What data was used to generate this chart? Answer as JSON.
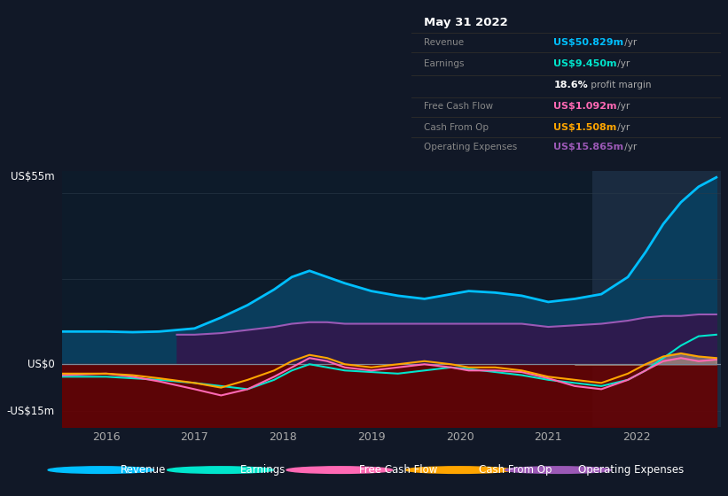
{
  "bg_color": "#111827",
  "plot_bg_color": "#0d1b2a",
  "grid_color": "#2a3a4a",
  "ylim": [
    -20,
    62
  ],
  "xlim": [
    2015.5,
    2022.95
  ],
  "ylabel_top": "US$55m",
  "ylabel_zero": "US$0",
  "ylabel_bottom": "-US$15m",
  "xticks": [
    2016,
    2017,
    2018,
    2019,
    2020,
    2021,
    2022
  ],
  "revenue_color": "#00bfff",
  "earnings_color": "#00e5cc",
  "fcf_color": "#ff69b4",
  "cashfromop_color": "#ffa500",
  "opex_color": "#9b59b6",
  "revenue_fill_color": "#0a3d5c",
  "earnings_fill_color": "#6b0000",
  "opex_fill_color": "#2d1b4e",
  "highlight_bg": "#1a2b40",
  "highlight_start": 2021.5,
  "highlight_end": 2022.95,
  "revenue": {
    "x": [
      2015.5,
      2016.0,
      2016.3,
      2016.6,
      2017.0,
      2017.3,
      2017.6,
      2017.9,
      2018.1,
      2018.3,
      2018.5,
      2018.7,
      2019.0,
      2019.3,
      2019.6,
      2019.9,
      2020.1,
      2020.4,
      2020.7,
      2021.0,
      2021.3,
      2021.6,
      2021.9,
      2022.1,
      2022.3,
      2022.5,
      2022.7,
      2022.9
    ],
    "y": [
      10.5,
      10.5,
      10.3,
      10.5,
      11.5,
      15,
      19,
      24,
      28,
      30,
      28,
      26,
      23.5,
      22,
      21,
      22.5,
      23.5,
      23,
      22,
      20,
      21,
      22.5,
      28,
      36,
      45,
      52,
      57,
      60
    ]
  },
  "opex": {
    "x": [
      2016.8,
      2017.0,
      2017.3,
      2017.6,
      2017.9,
      2018.1,
      2018.3,
      2018.5,
      2018.7,
      2019.0,
      2019.3,
      2019.6,
      2019.9,
      2020.1,
      2020.4,
      2020.7,
      2021.0,
      2021.3,
      2021.6,
      2021.9,
      2022.1,
      2022.3,
      2022.5,
      2022.7,
      2022.9
    ],
    "y": [
      9.5,
      9.5,
      10,
      11,
      12,
      13,
      13.5,
      13.5,
      13,
      13,
      13,
      13,
      13,
      13,
      13,
      13,
      12,
      12.5,
      13,
      14,
      15,
      15.5,
      15.5,
      16,
      16
    ]
  },
  "earnings": {
    "x": [
      2015.5,
      2016.0,
      2016.3,
      2016.6,
      2017.0,
      2017.3,
      2017.6,
      2017.9,
      2018.1,
      2018.3,
      2018.5,
      2018.7,
      2019.0,
      2019.3,
      2019.6,
      2019.9,
      2020.1,
      2020.4,
      2020.7,
      2021.0,
      2021.3,
      2021.6,
      2021.9,
      2022.1,
      2022.3,
      2022.5,
      2022.7,
      2022.9
    ],
    "y": [
      -4,
      -4,
      -4.5,
      -5,
      -6,
      -7,
      -8,
      -5,
      -2,
      0,
      -1,
      -2,
      -2.5,
      -3,
      -2,
      -1,
      -1.5,
      -2.5,
      -3.5,
      -5,
      -6,
      -7,
      -5,
      -2,
      2,
      6,
      9,
      9.5
    ]
  },
  "fcf": {
    "x": [
      2015.5,
      2016.0,
      2016.3,
      2016.6,
      2017.0,
      2017.3,
      2017.6,
      2017.9,
      2018.1,
      2018.3,
      2018.5,
      2018.7,
      2019.0,
      2019.3,
      2019.6,
      2019.9,
      2020.1,
      2020.4,
      2020.7,
      2021.0,
      2021.3,
      2021.6,
      2021.9,
      2022.1,
      2022.3,
      2022.5,
      2022.7,
      2022.9
    ],
    "y": [
      -3.5,
      -3,
      -4,
      -5.5,
      -8,
      -10,
      -8,
      -4,
      -1,
      2,
      1,
      -1,
      -2,
      -1,
      0,
      -1,
      -2,
      -2,
      -2.5,
      -4.5,
      -7,
      -8,
      -5,
      -2,
      1,
      2,
      1,
      1.5
    ]
  },
  "cashfromop": {
    "x": [
      2015.5,
      2016.0,
      2016.3,
      2016.6,
      2017.0,
      2017.3,
      2017.6,
      2017.9,
      2018.1,
      2018.3,
      2018.5,
      2018.7,
      2019.0,
      2019.3,
      2019.6,
      2019.9,
      2020.1,
      2020.4,
      2020.7,
      2021.0,
      2021.3,
      2021.6,
      2021.9,
      2022.1,
      2022.3,
      2022.5,
      2022.7,
      2022.9
    ],
    "y": [
      -3,
      -3,
      -3.5,
      -4.5,
      -6,
      -7.5,
      -5,
      -2,
      1,
      3,
      2,
      0,
      -1,
      0,
      1,
      0,
      -1,
      -1,
      -2,
      -4,
      -5,
      -6,
      -3,
      0,
      2.5,
      3.5,
      2.5,
      2
    ]
  },
  "legend": [
    {
      "label": "Revenue",
      "color": "#00bfff"
    },
    {
      "label": "Earnings",
      "color": "#00e5cc"
    },
    {
      "label": "Free Cash Flow",
      "color": "#ff69b4"
    },
    {
      "label": "Cash From Op",
      "color": "#ffa500"
    },
    {
      "label": "Operating Expenses",
      "color": "#9b59b6"
    }
  ]
}
